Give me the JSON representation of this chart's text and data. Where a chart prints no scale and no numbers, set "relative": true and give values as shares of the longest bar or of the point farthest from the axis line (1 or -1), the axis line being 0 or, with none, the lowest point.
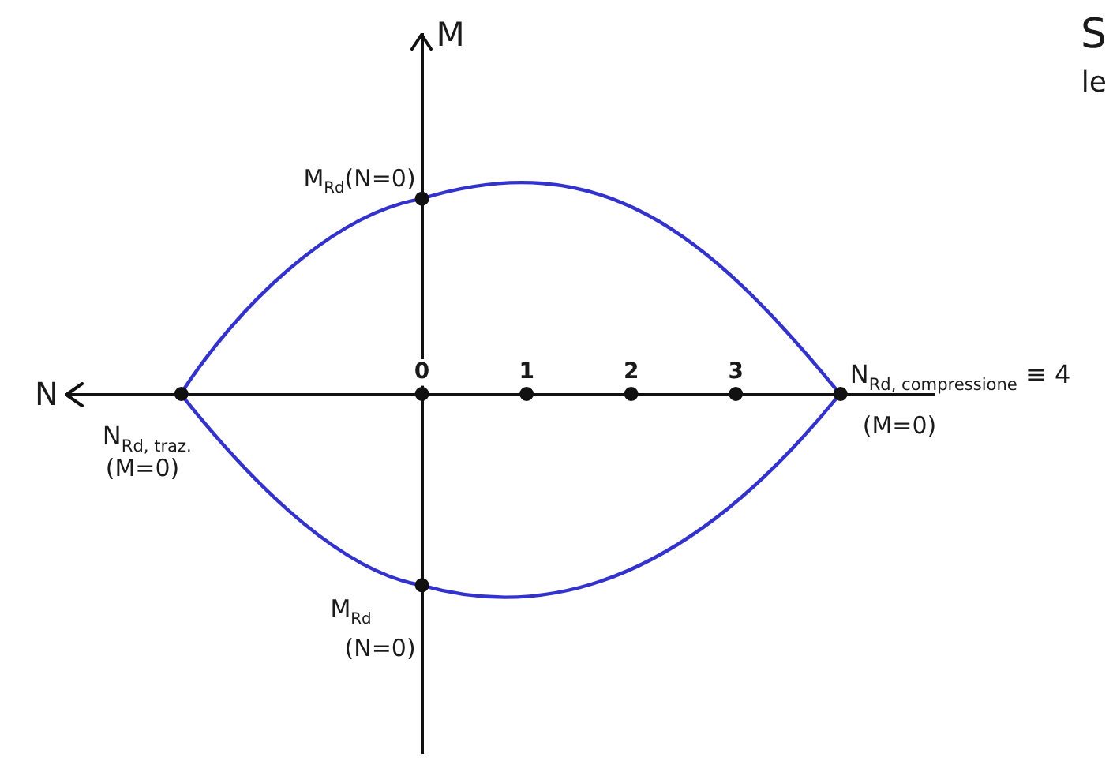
{
  "chart_data": {
    "type": "scatter",
    "xlabel": "N",
    "ylabel": "M",
    "relative": true,
    "xlim": [
      -3.4,
      4.9
    ],
    "xticks": [
      0,
      1,
      2,
      3
    ],
    "color": "#111111",
    "marker": "circle",
    "x": [
      -2.3,
      0,
      1,
      2,
      3,
      4,
      0,
      0
    ],
    "values": [
      0,
      0,
      0,
      0,
      0,
      0,
      1,
      -0.98
    ],
    "annotations": [
      {
        "text": "M$_{Rd}$(N=0)",
        "x": 0,
        "y": 1
      },
      {
        "text": "N$_{Rd, compressione}$ ≡ 4",
        "x": 4,
        "y": 0
      },
      {
        "text": "(M=0)",
        "x": 4,
        "y": 0
      },
      {
        "text": "N$_{Rd, traz.}$",
        "x": -2.3,
        "y": 0
      },
      {
        "text": "(M=0)",
        "x": -2.3,
        "y": 0
      },
      {
        "text": "M$_{Rd}$",
        "x": 0,
        "y": -0.98
      },
      {
        "text": "(N=0)",
        "x": 0,
        "y": -0.98
      },
      "S",
      "le"
    ]
  }
}
